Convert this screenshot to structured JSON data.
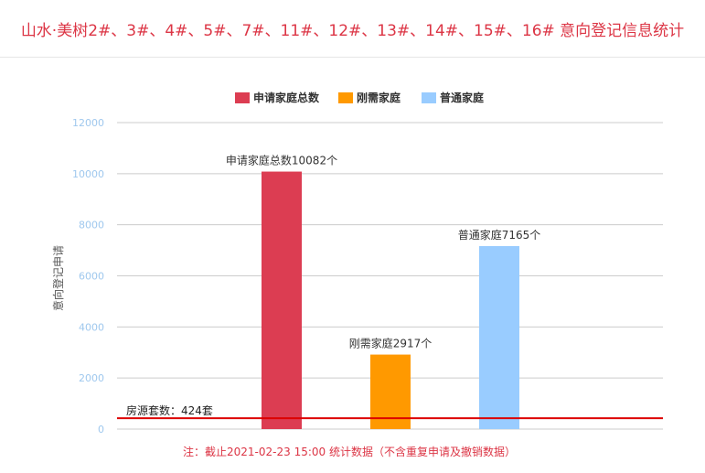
{
  "page": {
    "title": "山水·美树2#、3#、4#、5#、7#、11#、12#、13#、14#、15#、16# 意向登记信息统计"
  },
  "chart_data": {
    "type": "bar",
    "categories": [
      "申请家庭总数",
      "刚需家庭",
      "普通家庭"
    ],
    "values": [
      10082,
      2917,
      7165
    ],
    "colors": [
      "#dc3d52",
      "#ff9900",
      "#99ccff"
    ],
    "data_labels": [
      "申请家庭总数10082个",
      "刚需家庭2917个",
      "普通家庭7165个"
    ],
    "legend": {
      "position": "top",
      "items": [
        {
          "name": "申请家庭总数",
          "color": "#dc3d52"
        },
        {
          "name": "刚需家庭",
          "color": "#ff9900"
        },
        {
          "name": "普通家庭",
          "color": "#99ccff"
        }
      ]
    },
    "ylabel": "意向登记申请",
    "ylim": [
      0,
      12000
    ],
    "yticks": [
      "0",
      "2000",
      "4000",
      "6000",
      "8000",
      "10000",
      "12000"
    ],
    "grid": true,
    "plot_line": {
      "value": 424,
      "label": "房源套数：424套",
      "color": "#dd0000"
    },
    "footnote": "注：截止2021-02-23 15:00 统计数据（不含重复申请及撤销数据）"
  }
}
